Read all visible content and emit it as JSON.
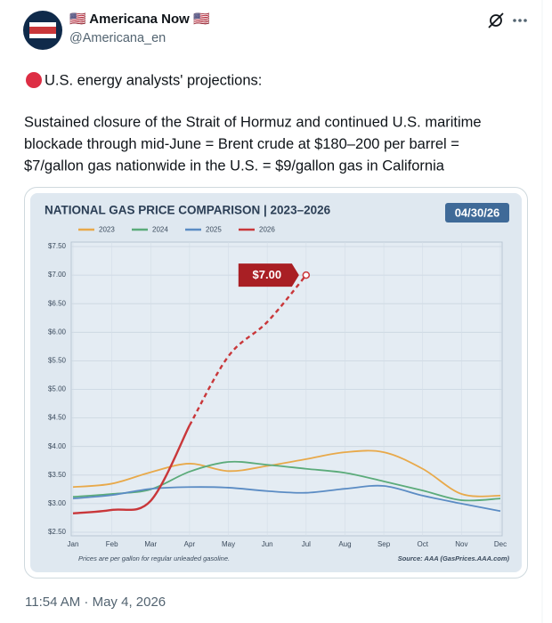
{
  "post": {
    "author_name": "🇺🇸 Americana Now 🇺🇸",
    "handle": "@Americana_en",
    "headline": "U.S. energy analysts' projections:",
    "body_lines": [
      "Sustained closure of the Strait of Hormuz and continued U.S. maritime",
      "blockade through mid-June = Brent crude at $180–200 per barrel =",
      "$7/gallon gas nationwide in the U.S. = $9/gallon gas in California"
    ],
    "timestamp": "11:54 AM · May 4, 2026"
  },
  "chart_data": {
    "type": "line",
    "title": "NATIONAL GAS PRICE COMPARISON | 2023–2026",
    "badge": "04/30/26",
    "footnote": "Prices are per gallon for regular unleaded gasoline.",
    "source": "Source: AAA (GasPrices.AAA.com)",
    "categories": [
      "Jan",
      "Feb",
      "Mar",
      "Apr",
      "May",
      "Jun",
      "Jul",
      "Aug",
      "Sep",
      "Oct",
      "Nov",
      "Dec"
    ],
    "series": [
      {
        "name": "2023",
        "color": "#e8a94a",
        "values": [
          3.29,
          3.35,
          3.55,
          3.7,
          3.57,
          3.66,
          3.78,
          3.9,
          3.9,
          3.61,
          3.17,
          3.14
        ]
      },
      {
        "name": "2024",
        "color": "#5bab7a",
        "values": [
          3.12,
          3.17,
          3.25,
          3.56,
          3.73,
          3.68,
          3.61,
          3.54,
          3.39,
          3.23,
          3.06,
          3.09
        ]
      },
      {
        "name": "2025",
        "color": "#5b8cc4",
        "values": [
          3.09,
          3.15,
          3.26,
          3.29,
          3.28,
          3.22,
          3.19,
          3.26,
          3.31,
          3.14,
          3.0,
          2.87
        ]
      },
      {
        "name": "2026",
        "color": "#c9373a",
        "values": [
          2.83,
          2.89,
          3.05,
          4.37,
          5.58,
          6.18,
          7.0,
          null,
          null,
          null,
          null,
          null
        ],
        "value_labels": [
          null,
          null,
          null,
          null,
          null,
          null,
          "$7.00",
          null,
          null,
          null,
          null,
          null
        ],
        "dashed_from_index": 3
      }
    ],
    "ylim": [
      2.5,
      7.5
    ],
    "yticks": [
      {
        "value": 2.5,
        "label": "$2.50"
      },
      {
        "value": 3.0,
        "label": "$3.00"
      },
      {
        "value": 3.5,
        "label": "$3.50"
      },
      {
        "value": 4.0,
        "label": "$4.00"
      },
      {
        "value": 4.5,
        "label": "$4.50"
      },
      {
        "value": 5.0,
        "label": "$5.00"
      },
      {
        "value": 5.5,
        "label": "$5.50"
      },
      {
        "value": 6.0,
        "label": "$6.00"
      },
      {
        "value": 6.5,
        "label": "$6.50"
      },
      {
        "value": 7.0,
        "label": "$7.00"
      },
      {
        "value": 7.5,
        "label": "$7.50"
      }
    ],
    "grid": true
  }
}
